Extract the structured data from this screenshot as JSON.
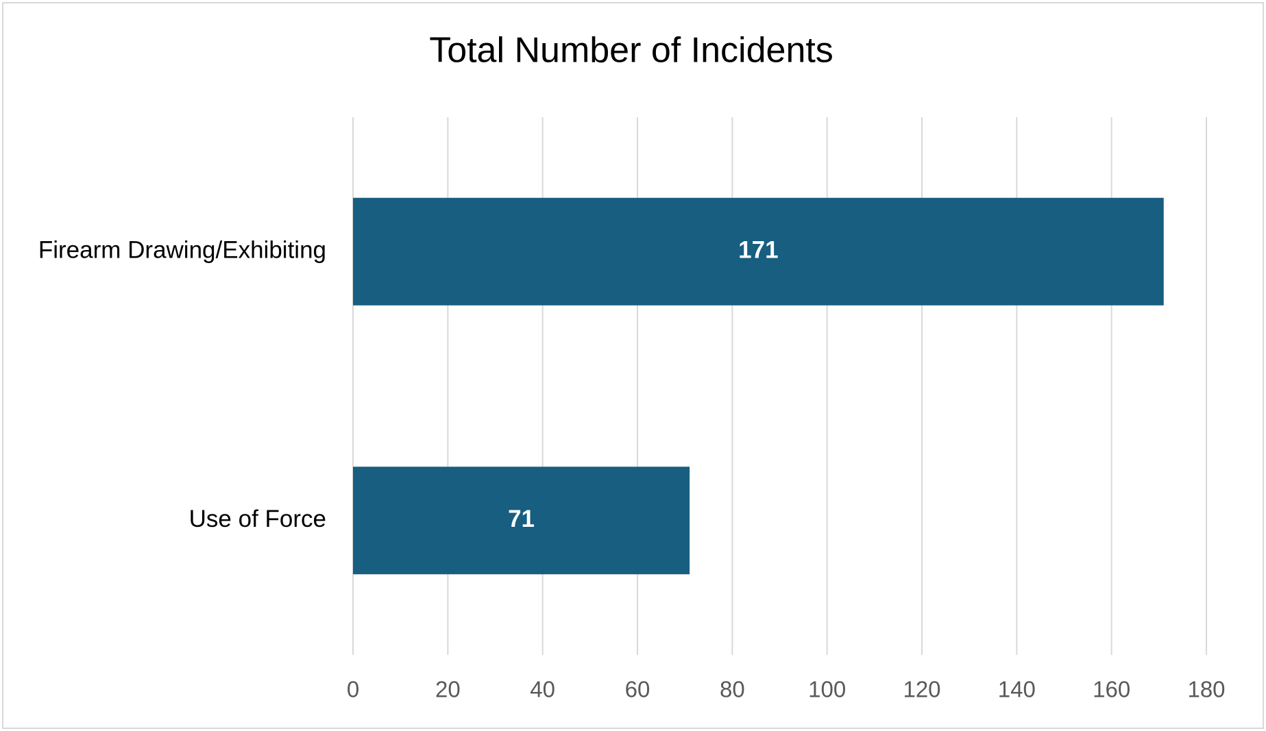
{
  "chart_data": {
    "type": "hbar",
    "title": "Total Number of Incidents",
    "categories": [
      "Firearm Drawing/Exhibiting",
      "Use of Force"
    ],
    "values": [
      171,
      71
    ],
    "color": "#175e80",
    "data_labels": true,
    "xlim": [
      0,
      180
    ],
    "xticks": [
      0,
      20,
      40,
      60,
      80,
      100,
      120,
      140,
      160,
      180
    ],
    "grid": true
  }
}
